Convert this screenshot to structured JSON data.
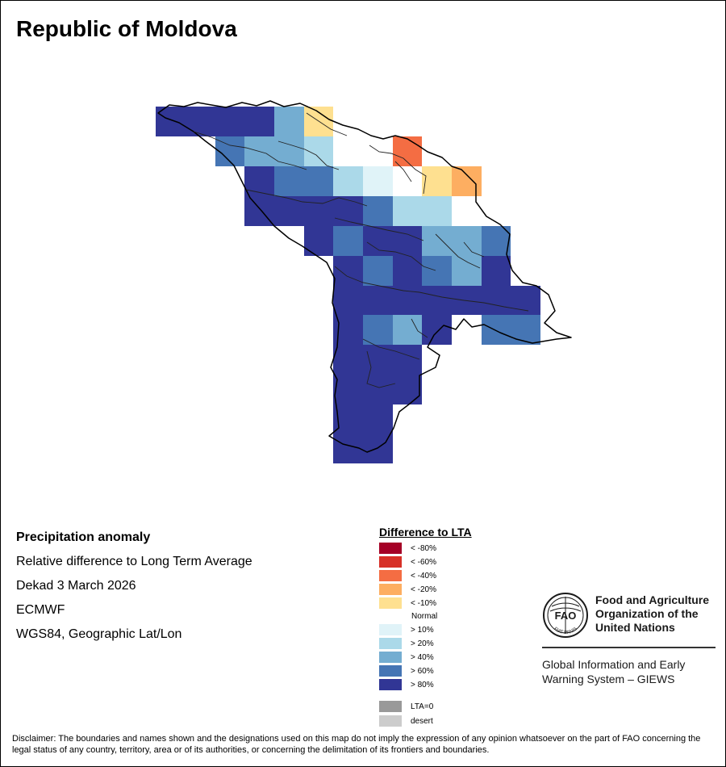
{
  "title": "Republic of Moldova",
  "info": {
    "line1": "Precipitation anomaly",
    "line2": "Relative difference to Long Term Average",
    "line3": "Dekad 3 March 2026",
    "line4": "ECMWF",
    "line5": "WGS84, Geographic Lat/Lon"
  },
  "legend": {
    "title": "Difference to LTA",
    "items": [
      {
        "label": "< -80%",
        "color": "#a50026"
      },
      {
        "label": "< -60%",
        "color": "#d73027"
      },
      {
        "label": "< -40%",
        "color": "#f46d43"
      },
      {
        "label": "< -20%",
        "color": "#fdae61"
      },
      {
        "label": "< -10%",
        "color": "#fee090"
      },
      {
        "label": "Normal",
        "color": "#ffffff"
      },
      {
        "label": "> 10%",
        "color": "#e0f3f8"
      },
      {
        "label": "> 20%",
        "color": "#abd9e9"
      },
      {
        "label": "> 40%",
        "color": "#74add1"
      },
      {
        "label": "> 60%",
        "color": "#4575b4"
      },
      {
        "label": "> 80%",
        "color": "#313695"
      },
      {
        "label": "LTA=0",
        "color": "#999999"
      },
      {
        "label": "desert",
        "color": "#cccccc"
      }
    ]
  },
  "branding": {
    "fao_line1": "Food and Agriculture",
    "fao_line2": "Organization of the",
    "fao_line3": "United Nations",
    "fao_logo_text": "FAO",
    "fao_motto": "FIAT PANIS",
    "giews_line1": "Global Information and Early",
    "giews_line2": "Warning System – GIEWS"
  },
  "disclaimer": "Disclaimer: The boundaries and names shown and the designations used on this map do not imply the expression of any opinion whatsoever on the part of FAO concerning the legal status of any country, territory, area or of its authorities, or concerning the delimitation of its frontiers and boundaries.",
  "map": {
    "region": "Republic of Moldova",
    "colors": {
      "gt80": "#313695",
      "gt60": "#4575b4",
      "gt40": "#74add1",
      "gt20": "#abd9e9",
      "gt10": "#e0f3f8",
      "lt10": "#fee090",
      "lt20": "#fdae61",
      "lt40": "#f46d43"
    }
  }
}
